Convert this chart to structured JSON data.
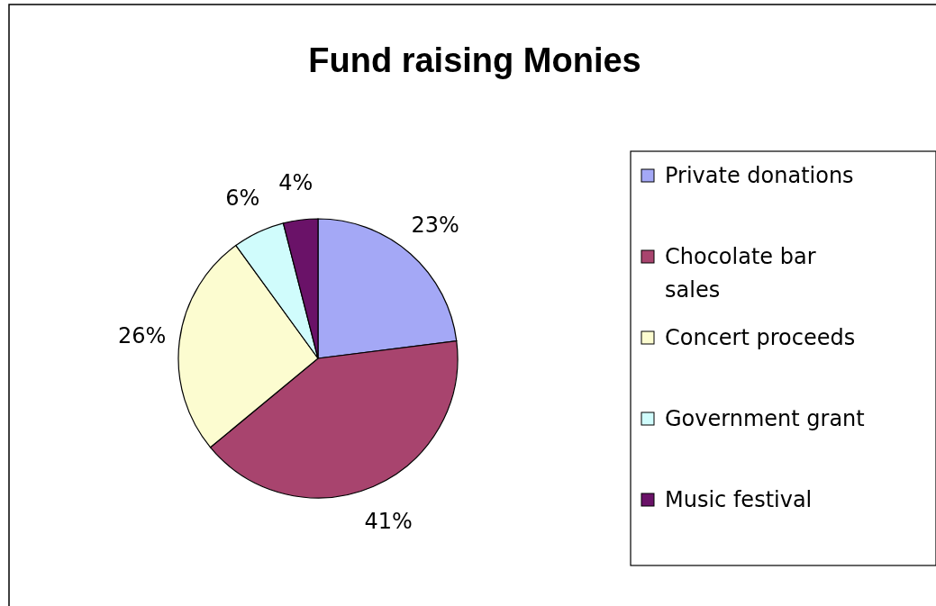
{
  "chart_data": {
    "type": "pie",
    "title": "Fund raising Monies",
    "categories": [
      "Private donations",
      "Chocolate bar sales",
      "Concert proceeds",
      "Government grant",
      "Music festival"
    ],
    "values": [
      23,
      41,
      26,
      6,
      4
    ],
    "value_labels": [
      "23%",
      "41%",
      "26%",
      "6%",
      "4%"
    ],
    "colors": [
      "#a4a8f6",
      "#a8446e",
      "#fcfcd0",
      "#d0fcfc",
      "#6a1268"
    ],
    "legend": "right"
  }
}
